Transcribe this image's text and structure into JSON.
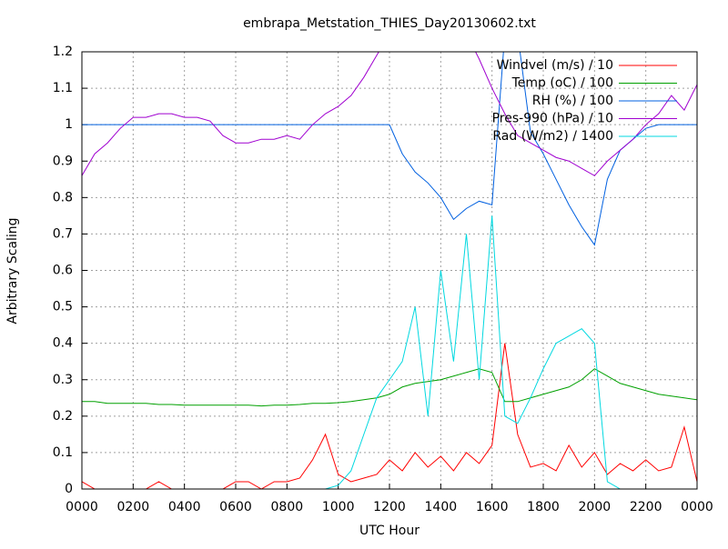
{
  "chart_data": {
    "type": "line",
    "title": "embrapa_Metstation_THIES_Day20130602.txt",
    "x_label": "UTC Hour",
    "y_label": "Arbitrary Scaling",
    "xlim": [
      0,
      24
    ],
    "ylim": [
      0,
      1.2
    ],
    "xticks": [
      {
        "value": 0,
        "label": "0000"
      },
      {
        "value": 2,
        "label": "0200"
      },
      {
        "value": 4,
        "label": "0400"
      },
      {
        "value": 6,
        "label": "0600"
      },
      {
        "value": 8,
        "label": "0800"
      },
      {
        "value": 10,
        "label": "1000"
      },
      {
        "value": 12,
        "label": "1200"
      },
      {
        "value": 14,
        "label": "1400"
      },
      {
        "value": 16,
        "label": "1600"
      },
      {
        "value": 18,
        "label": "1800"
      },
      {
        "value": 20,
        "label": "2000"
      },
      {
        "value": 22,
        "label": "2200"
      },
      {
        "value": 24,
        "label": "0000"
      }
    ],
    "yticks": [
      0,
      0.1,
      0.2,
      0.3,
      0.4,
      0.5,
      0.6,
      0.7,
      0.8,
      0.9,
      1,
      1.1,
      1.2
    ],
    "grid": true,
    "legend_position": "top-right",
    "x": [
      0,
      0.5,
      1,
      1.5,
      2,
      2.5,
      3,
      3.5,
      4,
      4.5,
      5,
      5.5,
      6,
      6.5,
      7,
      7.5,
      8,
      8.5,
      9,
      9.5,
      10,
      10.5,
      11,
      11.5,
      12,
      12.5,
      13,
      13.5,
      14,
      14.5,
      15,
      15.5,
      16,
      16.5,
      17,
      17.5,
      18,
      18.5,
      19,
      19.5,
      20,
      20.5,
      21,
      21.5,
      22,
      22.5,
      23,
      23.5,
      24
    ],
    "series": [
      {
        "name": "Windvel (m/s) / 10",
        "color": "#ff0000",
        "values": [
          0.02,
          0,
          0,
          0,
          0,
          0,
          0.02,
          0,
          0,
          0,
          0,
          0,
          0.02,
          0.02,
          0,
          0.02,
          0.02,
          0.03,
          0.08,
          0.15,
          0.04,
          0.02,
          0.03,
          0.04,
          0.08,
          0.05,
          0.1,
          0.06,
          0.09,
          0.05,
          0.1,
          0.07,
          0.12,
          0.4,
          0.15,
          0.06,
          0.07,
          0.05,
          0.12,
          0.06,
          0.1,
          0.04,
          0.07,
          0.05,
          0.08,
          0.05,
          0.06,
          0.17,
          0.02
        ]
      },
      {
        "name": "Temp (oC) / 100",
        "color": "#00a000",
        "values": [
          0.24,
          0.24,
          0.235,
          0.235,
          0.235,
          0.235,
          0.232,
          0.232,
          0.23,
          0.23,
          0.23,
          0.23,
          0.23,
          0.23,
          0.228,
          0.23,
          0.23,
          0.232,
          0.235,
          0.235,
          0.237,
          0.24,
          0.245,
          0.25,
          0.26,
          0.28,
          0.29,
          0.295,
          0.3,
          0.31,
          0.32,
          0.33,
          0.32,
          0.24,
          0.24,
          0.25,
          0.26,
          0.27,
          0.28,
          0.3,
          0.33,
          0.31,
          0.29,
          0.28,
          0.27,
          0.26,
          0.255,
          0.25,
          0.245
        ]
      },
      {
        "name": "RH (%) / 100",
        "color": "#0060e0",
        "values": [
          1,
          1,
          1,
          1,
          1,
          1,
          1,
          1,
          1,
          1,
          1,
          1,
          1,
          1,
          1,
          1,
          1,
          1,
          1,
          1,
          1,
          1,
          1,
          1,
          1,
          0.92,
          0.87,
          0.84,
          0.8,
          0.74,
          0.77,
          0.79,
          0.78,
          1.25,
          1.25,
          0.98,
          0.92,
          0.85,
          0.78,
          0.72,
          0.67,
          0.85,
          0.93,
          0.96,
          0.99,
          1,
          1,
          1,
          1
        ]
      },
      {
        "name": "Pres-990 (hPa) / 10",
        "color": "#a000d0",
        "values": [
          0.86,
          0.92,
          0.95,
          0.99,
          1.02,
          1.02,
          1.03,
          1.03,
          1.02,
          1.02,
          1.01,
          0.97,
          0.95,
          0.95,
          0.96,
          0.96,
          0.97,
          0.96,
          1,
          1.03,
          1.05,
          1.08,
          1.13,
          1.19,
          1.25,
          1.25,
          1.25,
          1.25,
          1.25,
          1.25,
          1.25,
          1.18,
          1.1,
          1.03,
          0.97,
          0.95,
          0.93,
          0.91,
          0.9,
          0.88,
          0.86,
          0.9,
          0.93,
          0.96,
          1,
          1.03,
          1.08,
          1.04,
          1.11
        ]
      },
      {
        "name": "Rad (W/m2) / 1400",
        "color": "#00d8e0",
        "values": [
          0,
          0,
          0,
          0,
          0,
          0,
          0,
          0,
          0,
          0,
          0,
          0,
          0,
          0,
          0,
          0,
          0,
          0,
          0,
          0,
          0.01,
          0.05,
          0.15,
          0.25,
          0.3,
          0.35,
          0.5,
          0.2,
          0.6,
          0.35,
          0.7,
          0.3,
          0.75,
          0.2,
          0.18,
          0.25,
          0.33,
          0.4,
          0.42,
          0.44,
          0.4,
          0.02,
          0,
          0,
          0,
          0,
          0,
          0,
          0
        ]
      }
    ]
  }
}
